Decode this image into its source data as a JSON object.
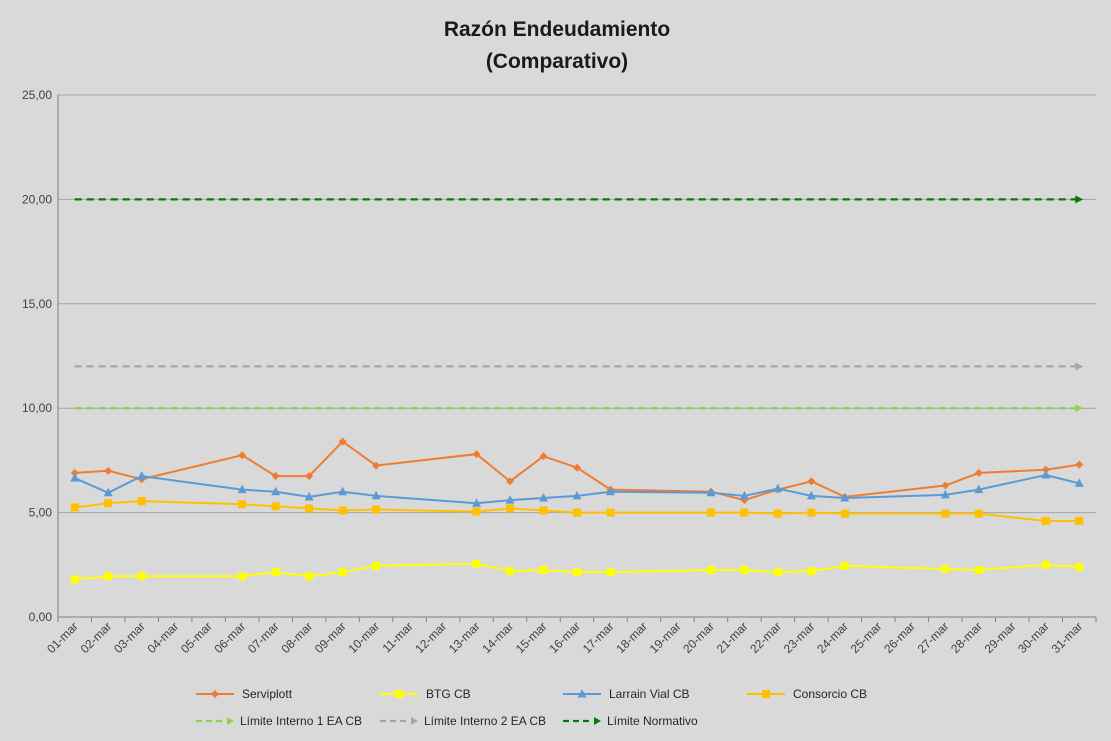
{
  "chart_data": {
    "type": "line",
    "title": [
      "Razón Endeudamiento",
      "(Comparativo)"
    ],
    "xlabel": "",
    "ylabel": "",
    "ylim": [
      0,
      25
    ],
    "yticks": [
      "0,00",
      "5,00",
      "10,00",
      "15,00",
      "20,00",
      "25,00"
    ],
    "ytick_values": [
      0,
      5,
      10,
      15,
      20,
      25
    ],
    "grid": true,
    "legend_position": "bottom",
    "categories": [
      "01-mar",
      "02-mar",
      "03-mar",
      "04-mar",
      "05-mar",
      "06-mar",
      "07-mar",
      "08-mar",
      "09-mar",
      "10-mar",
      "11-mar",
      "12-mar",
      "13-mar",
      "14-mar",
      "15-mar",
      "16-mar",
      "17-mar",
      "18-mar",
      "19-mar",
      "20-mar",
      "21-mar",
      "22-mar",
      "23-mar",
      "24-mar",
      "25-mar",
      "26-mar",
      "27-mar",
      "28-mar",
      "29-mar",
      "30-mar",
      "31-mar"
    ],
    "series": [
      {
        "name": "Serviplott",
        "color": "#ed7d31",
        "marker": "diamond",
        "dashed": false,
        "values": [
          6.9,
          7.0,
          6.6,
          null,
          null,
          7.75,
          6.75,
          6.75,
          8.4,
          7.25,
          null,
          null,
          7.8,
          6.5,
          7.7,
          7.15,
          6.1,
          null,
          null,
          6.0,
          5.6,
          6.1,
          6.5,
          5.75,
          null,
          null,
          6.3,
          6.9,
          null,
          7.05,
          7.3
        ]
      },
      {
        "name": "BTG CB",
        "color": "#ffff00",
        "marker": "square",
        "dashed": false,
        "values": [
          1.8,
          1.95,
          1.95,
          null,
          null,
          1.95,
          2.15,
          1.95,
          2.15,
          2.45,
          null,
          null,
          2.55,
          2.2,
          2.25,
          2.15,
          2.15,
          null,
          null,
          2.25,
          2.25,
          2.15,
          2.2,
          2.45,
          null,
          null,
          2.3,
          2.25,
          null,
          2.5,
          2.4
        ]
      },
      {
        "name": "Larrain Vial CB",
        "color": "#5b9bd5",
        "marker": "triangle",
        "dashed": false,
        "values": [
          6.65,
          5.95,
          6.75,
          null,
          null,
          6.1,
          6.0,
          5.75,
          6.0,
          5.8,
          null,
          null,
          5.45,
          5.6,
          5.7,
          5.8,
          6.0,
          null,
          null,
          5.95,
          5.8,
          6.15,
          5.8,
          5.7,
          null,
          null,
          5.85,
          6.1,
          null,
          6.8,
          6.4
        ]
      },
      {
        "name": "Consorcio CB",
        "color": "#ffc000",
        "marker": "square",
        "dashed": false,
        "values": [
          5.25,
          5.45,
          5.55,
          null,
          null,
          5.4,
          5.3,
          5.2,
          5.1,
          5.15,
          null,
          null,
          5.05,
          5.2,
          5.1,
          5.0,
          5.0,
          null,
          null,
          5.0,
          5.0,
          4.95,
          5.0,
          4.95,
          null,
          null,
          4.95,
          4.95,
          null,
          4.6,
          4.6
        ]
      },
      {
        "name": "Límite Interno 1 EA CB",
        "color": "#92d050",
        "marker": "arrow",
        "dashed": true,
        "values": [
          10,
          10,
          10,
          10,
          10,
          10,
          10,
          10,
          10,
          10,
          10,
          10,
          10,
          10,
          10,
          10,
          10,
          10,
          10,
          10,
          10,
          10,
          10,
          10,
          10,
          10,
          10,
          10,
          10,
          10,
          10
        ]
      },
      {
        "name": "Límite Interno 2 EA CB",
        "color": "#a6a6a6",
        "marker": "arrow",
        "dashed": true,
        "values": [
          12,
          12,
          12,
          12,
          12,
          12,
          12,
          12,
          12,
          12,
          12,
          12,
          12,
          12,
          12,
          12,
          12,
          12,
          12,
          12,
          12,
          12,
          12,
          12,
          12,
          12,
          12,
          12,
          12,
          12,
          12
        ]
      },
      {
        "name": "Límite Normativo",
        "color": "#008000",
        "marker": "arrow",
        "dashed": true,
        "values": [
          20,
          20,
          20,
          20,
          20,
          20,
          20,
          20,
          20,
          20,
          20,
          20,
          20,
          20,
          20,
          20,
          20,
          20,
          20,
          20,
          20,
          20,
          20,
          20,
          20,
          20,
          20,
          20,
          20,
          20,
          20
        ]
      }
    ]
  }
}
